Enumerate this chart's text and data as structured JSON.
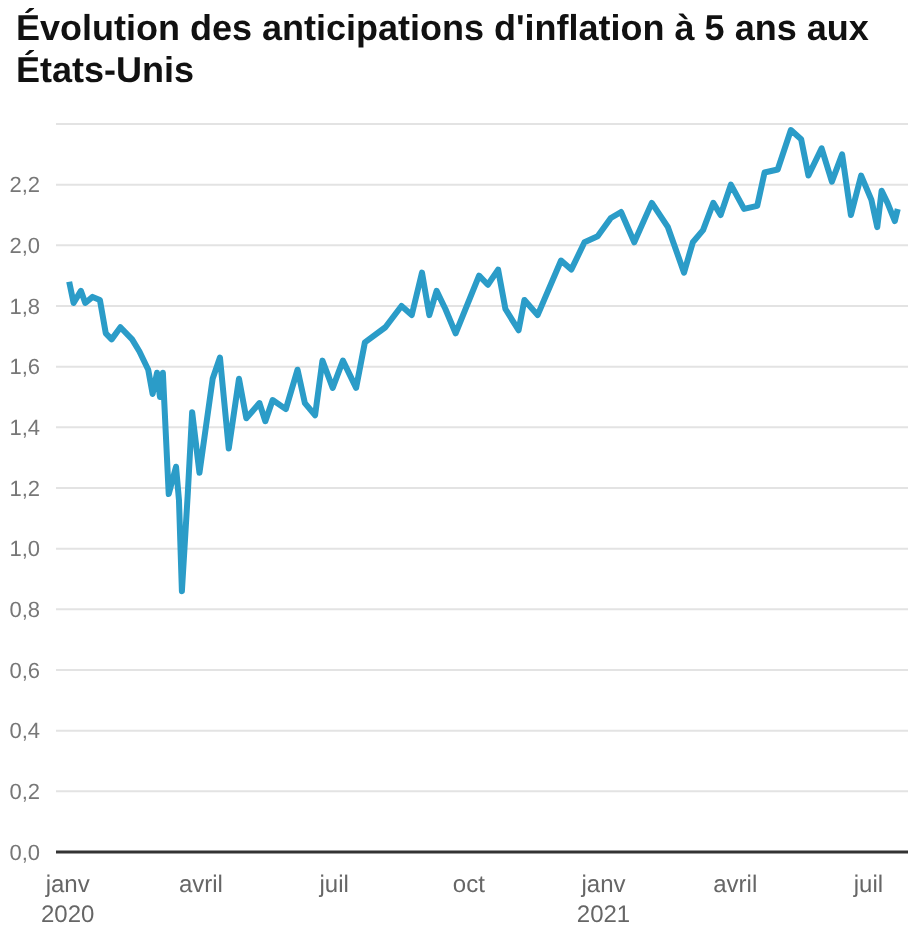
{
  "chart_data": {
    "type": "line",
    "title": "Évolution des anticipations d'inflation à 5 ans aux États-Unis",
    "x": [
      "2020-01-02",
      "2020-01-05",
      "2020-01-10",
      "2020-01-13",
      "2020-01-18",
      "2020-01-23",
      "2020-01-27",
      "2020-01-31",
      "2020-02-06",
      "2020-02-14",
      "2020-02-19",
      "2020-02-25",
      "2020-02-28",
      "2020-03-02",
      "2020-03-04",
      "2020-03-06",
      "2020-03-10",
      "2020-03-15",
      "2020-03-17",
      "2020-03-19",
      "2020-03-23",
      "2020-03-26",
      "2020-03-31",
      "2020-04-09",
      "2020-04-14",
      "2020-04-20",
      "2020-04-27",
      "2020-05-02",
      "2020-05-11",
      "2020-05-15",
      "2020-05-20",
      "2020-05-29",
      "2020-06-06",
      "2020-06-11",
      "2020-06-18",
      "2020-06-23",
      "2020-06-30",
      "2020-07-07",
      "2020-07-16",
      "2020-07-22",
      "2020-08-05",
      "2020-08-16",
      "2020-08-23",
      "2020-08-30",
      "2020-09-04",
      "2020-09-09",
      "2020-09-15",
      "2020-09-22",
      "2020-10-08",
      "2020-10-14",
      "2020-10-21",
      "2020-10-26",
      "2020-11-04",
      "2020-11-08",
      "2020-11-17",
      "2020-12-03",
      "2020-12-10",
      "2020-12-19",
      "2020-12-28",
      "2021-01-06",
      "2021-01-13",
      "2021-01-22",
      "2021-02-03",
      "2021-02-14",
      "2021-02-25",
      "2021-03-03",
      "2021-03-10",
      "2021-03-17",
      "2021-03-22",
      "2021-03-29",
      "2021-04-07",
      "2021-04-16",
      "2021-04-21",
      "2021-04-30",
      "2021-05-09",
      "2021-05-16",
      "2021-05-21",
      "2021-05-30",
      "2021-06-06",
      "2021-06-13",
      "2021-06-19",
      "2021-06-26",
      "2021-07-03",
      "2021-07-07",
      "2021-07-10",
      "2021-07-14",
      "2021-07-19",
      "2021-07-21"
    ],
    "series": [
      {
        "color": "#2b9cc8",
        "values": [
          1.88,
          1.81,
          1.85,
          1.81,
          1.83,
          1.82,
          1.71,
          1.69,
          1.73,
          1.69,
          1.65,
          1.59,
          1.51,
          1.58,
          1.5,
          1.58,
          1.18,
          1.27,
          1.16,
          0.86,
          1.18,
          1.45,
          1.25,
          1.56,
          1.63,
          1.33,
          1.56,
          1.43,
          1.48,
          1.42,
          1.49,
          1.46,
          1.59,
          1.48,
          1.44,
          1.62,
          1.53,
          1.62,
          1.53,
          1.68,
          1.73,
          1.8,
          1.77,
          1.91,
          1.77,
          1.85,
          1.79,
          1.71,
          1.9,
          1.87,
          1.92,
          1.79,
          1.72,
          1.82,
          1.77,
          1.95,
          1.92,
          2.01,
          2.03,
          2.09,
          2.11,
          2.01,
          2.14,
          2.06,
          1.91,
          2.01,
          2.05,
          2.14,
          2.1,
          2.2,
          2.12,
          2.13,
          2.24,
          2.25,
          2.38,
          2.35,
          2.23,
          2.32,
          2.21,
          2.3,
          2.1,
          2.23,
          2.15,
          2.06,
          2.18,
          2.14,
          2.08,
          2.12
        ]
      }
    ],
    "xlim": [
      "2019-12-24",
      "2021-07-28"
    ],
    "xticks": [
      {
        "value": "2020-01-01",
        "label": "janv\n2020"
      },
      {
        "value": "2020-04-01",
        "label": "avril"
      },
      {
        "value": "2020-07-01",
        "label": "juil"
      },
      {
        "value": "2020-10-01",
        "label": "oct"
      },
      {
        "value": "2021-01-01",
        "label": "janv\n2021"
      },
      {
        "value": "2021-04-01",
        "label": "avril"
      },
      {
        "value": "2021-07-01",
        "label": "juil"
      }
    ],
    "ylim": [
      0,
      2.4
    ],
    "yticks": [
      {
        "value": 0,
        "label": "0,0"
      },
      {
        "value": 0.2,
        "label": "0,2"
      },
      {
        "value": 0.4,
        "label": "0,4"
      },
      {
        "value": 0.6,
        "label": "0,6"
      },
      {
        "value": 0.8,
        "label": "0,8"
      },
      {
        "value": 1.0,
        "label": "1,0"
      },
      {
        "value": 1.2,
        "label": "1,2"
      },
      {
        "value": 1.4,
        "label": "1,4"
      },
      {
        "value": 1.6,
        "label": "1,6"
      },
      {
        "value": 1.8,
        "label": "1,8"
      },
      {
        "value": 2.0,
        "label": "2,0"
      },
      {
        "value": 2.2,
        "label": "2,2"
      }
    ],
    "grid": "y",
    "legend": false,
    "marker": "none",
    "line_style": "solid"
  }
}
